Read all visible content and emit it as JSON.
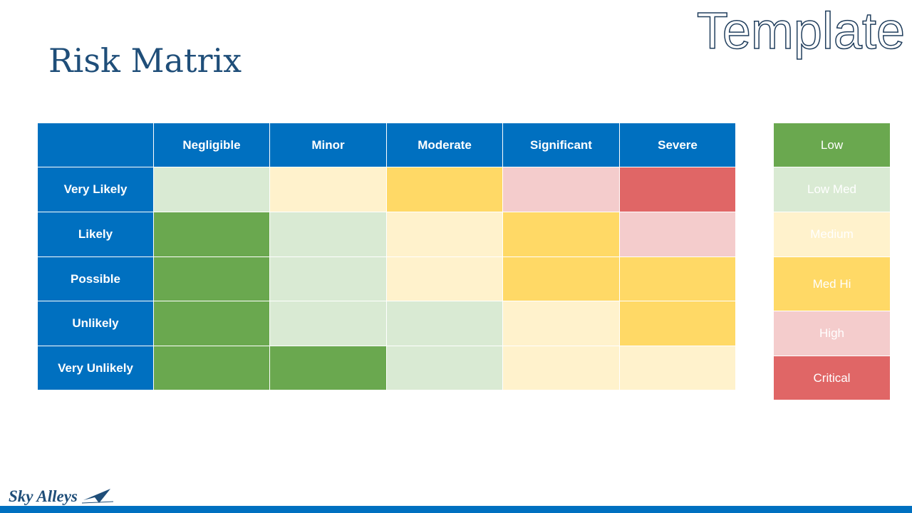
{
  "watermark": "Template",
  "title": "Risk Matrix",
  "matrix": {
    "columns": [
      "Negligible",
      "Minor",
      "Moderate",
      "Significant",
      "Severe"
    ],
    "rows": [
      {
        "label": "Very Likely",
        "colors": [
          "#d9ead3",
          "#fff2cc",
          "#ffd966",
          "#f4cccc",
          "#e06666"
        ]
      },
      {
        "label": "Likely",
        "colors": [
          "#6aa84f",
          "#d9ead3",
          "#fff2cc",
          "#ffd966",
          "#f4cccc"
        ]
      },
      {
        "label": "Possible",
        "colors": [
          "#6aa84f",
          "#d9ead3",
          "#fff2cc",
          "#ffd966",
          "#ffd966"
        ]
      },
      {
        "label": "Unlikely",
        "colors": [
          "#6aa84f",
          "#d9ead3",
          "#d9ead3",
          "#fff2cc",
          "#ffd966"
        ]
      },
      {
        "label": "Very Unlikely",
        "colors": [
          "#6aa84f",
          "#6aa84f",
          "#d9ead3",
          "#fff2cc",
          "#fff2cc"
        ]
      }
    ]
  },
  "legend": [
    {
      "label": "Low",
      "color": "#6aa84f"
    },
    {
      "label": "Low Med",
      "color": "#d9ead3"
    },
    {
      "label": "Medium",
      "color": "#fff2cc"
    },
    {
      "label": "Med Hi",
      "color": "#ffd966"
    },
    {
      "label": "High",
      "color": "#f4cccc"
    },
    {
      "label": "Critical",
      "color": "#e06666"
    }
  ],
  "logo": "Sky Alleys"
}
